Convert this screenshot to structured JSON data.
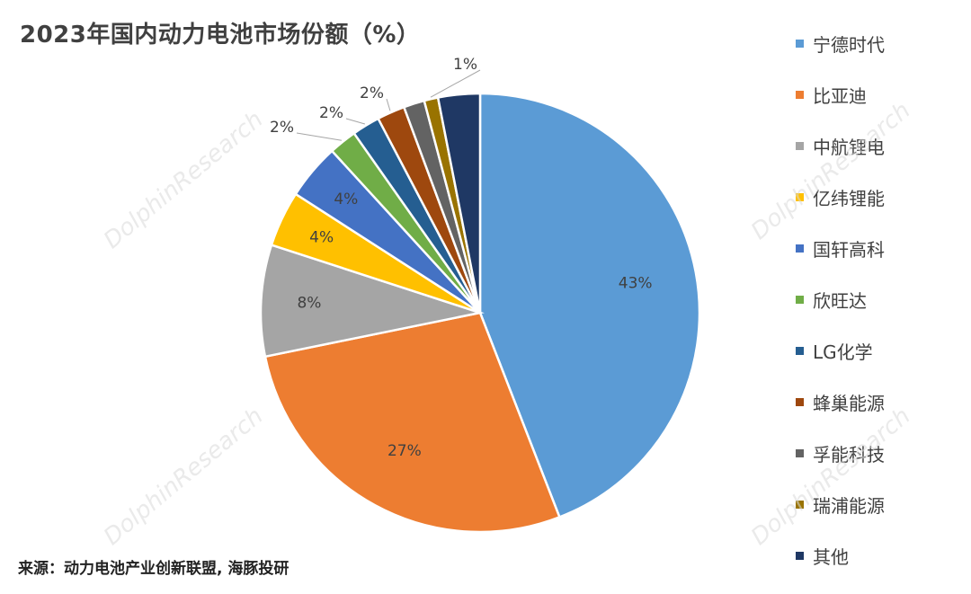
{
  "title": "2023年国内动力电池市场份额（%）",
  "source": "来源：动力电池产业创新联盟, 海豚投研",
  "watermark": "DolphinResearch",
  "chart_data": {
    "type": "pie",
    "title": "2023年国内动力电池市场份额（%）",
    "unit": "%",
    "legend_position": "right",
    "slices": [
      {
        "name": "宁德时代",
        "value": 43,
        "label": "43%",
        "color": "#5b9bd5"
      },
      {
        "name": "比亚迪",
        "value": 27,
        "label": "27%",
        "color": "#ed7d31"
      },
      {
        "name": "中航锂电",
        "value": 8,
        "label": "8%",
        "color": "#a5a5a5"
      },
      {
        "name": "亿纬锂能",
        "value": 4,
        "label": "4%",
        "color": "#ffc000"
      },
      {
        "name": "国轩高科",
        "value": 4,
        "label": "4%",
        "color": "#4472c4"
      },
      {
        "name": "欣旺达",
        "value": 2,
        "label": "2%",
        "color": "#70ad47"
      },
      {
        "name": "LG化学",
        "value": 2,
        "label": "2%",
        "color": "#255e91"
      },
      {
        "name": "蜂巢能源",
        "value": 2,
        "label": "2%",
        "color": "#9e480e"
      },
      {
        "name": "孚能科技",
        "value": 1.5,
        "label": "",
        "color": "#636363"
      },
      {
        "name": "瑞浦能源",
        "value": 1,
        "label": "1%",
        "color": "#997300"
      },
      {
        "name": "其他",
        "value": 3,
        "label": "",
        "color": "#1f3864"
      }
    ]
  }
}
